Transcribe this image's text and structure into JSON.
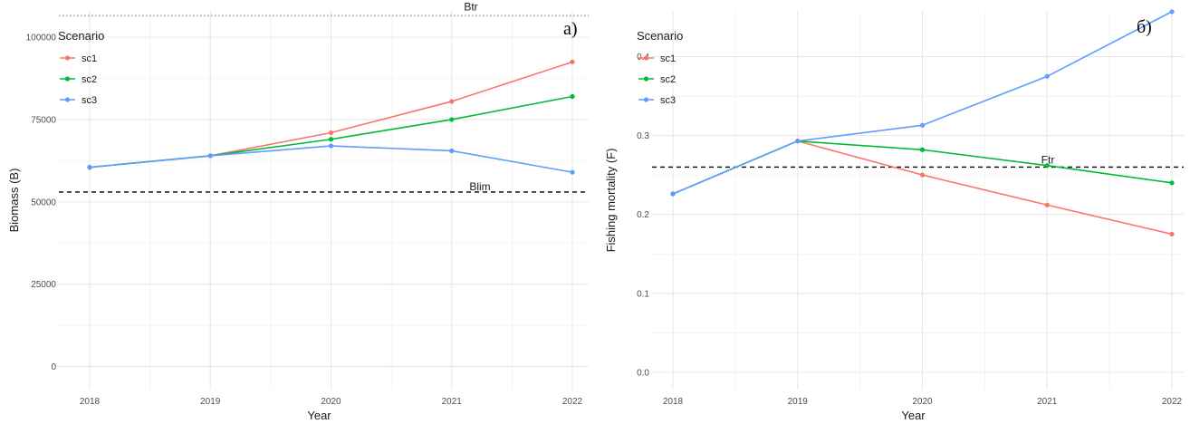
{
  "chart_data": [
    {
      "type": "line",
      "panel_letter": "а)",
      "xlabel": "Year",
      "ylabel": "Biomass (B)",
      "x": [
        2018,
        2019,
        2020,
        2021,
        2022
      ],
      "xticks": [
        "2018",
        "2019",
        "2020",
        "2021",
        "2022"
      ],
      "yticks": [
        "0",
        "25000",
        "50000",
        "75000",
        "100000"
      ],
      "ylim": [
        -7000,
        108000
      ],
      "grid": true,
      "legend": {
        "title": "Scenario",
        "position": "top-left",
        "entries": [
          "sc1",
          "sc2",
          "sc3"
        ]
      },
      "series": [
        {
          "name": "sc1",
          "color": "#F8766D",
          "values": [
            60500,
            64000,
            71000,
            80500,
            92500
          ]
        },
        {
          "name": "sc2",
          "color": "#00BA38",
          "values": [
            60500,
            64000,
            69000,
            75000,
            82000
          ]
        },
        {
          "name": "sc3",
          "color": "#619CFF",
          "values": [
            60500,
            64000,
            67000,
            65500,
            59000
          ]
        }
      ],
      "reference_lines": [
        {
          "label": "Btr",
          "value": 106500,
          "style": "dotted",
          "color": "#999999"
        },
        {
          "label": "Blim",
          "value": 53000,
          "style": "dashed",
          "color": "#000000"
        }
      ]
    },
    {
      "type": "line",
      "panel_letter": "б)",
      "xlabel": "Year",
      "ylabel": "Fishing mortality (F)",
      "x": [
        2018,
        2019,
        2020,
        2021,
        2022
      ],
      "xticks": [
        "2018",
        "2019",
        "2020",
        "2021",
        "2022"
      ],
      "yticks": [
        "0.0",
        "0.1",
        "0.2",
        "0.3",
        "0.4"
      ],
      "ylim": [
        -0.022,
        0.458
      ],
      "grid": true,
      "legend": {
        "title": "Scenario",
        "position": "top-left",
        "entries": [
          "sc1",
          "sc2",
          "sc3"
        ]
      },
      "series": [
        {
          "name": "sc1",
          "color": "#F8766D",
          "values": [
            0.226,
            0.293,
            0.25,
            0.212,
            0.175
          ]
        },
        {
          "name": "sc2",
          "color": "#00BA38",
          "values": [
            0.226,
            0.293,
            0.282,
            0.262,
            0.24
          ]
        },
        {
          "name": "sc3",
          "color": "#619CFF",
          "values": [
            0.226,
            0.293,
            0.313,
            0.375,
            0.457
          ]
        }
      ],
      "reference_lines": [
        {
          "label": "Ftr",
          "value": 0.26,
          "style": "dashed",
          "color": "#000000"
        }
      ]
    }
  ]
}
